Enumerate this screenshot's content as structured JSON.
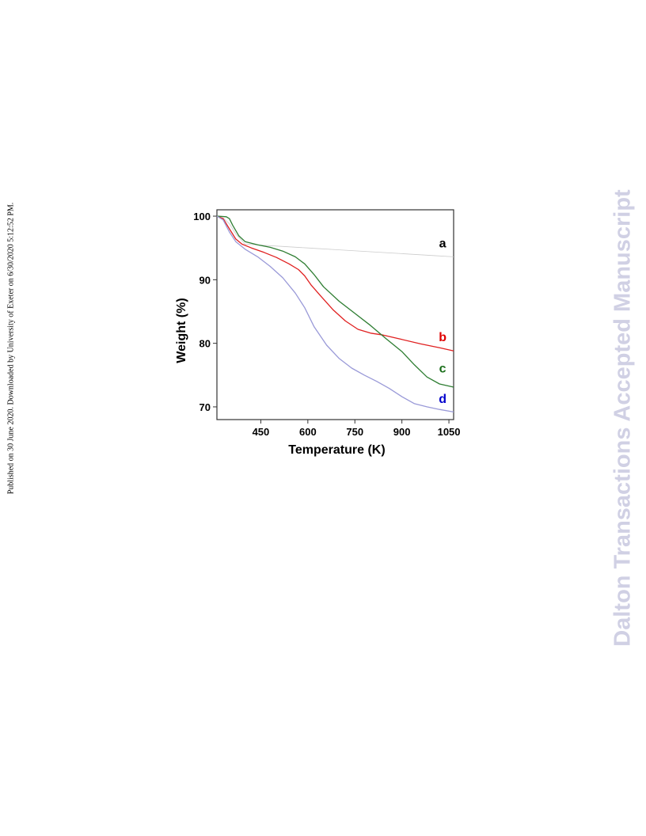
{
  "side_note": "Published on 30 June 2020. Downloaded by University of Exeter on 6/30/2020 5:12:52 PM.",
  "watermark": "Dalton Transactions Accepted Manuscript",
  "colors": {
    "background": "#ffffff",
    "watermark": "#d0d0e4",
    "series_a": "#cccccc",
    "series_b": "#e02020",
    "series_c": "#2e7d32",
    "series_d": "#9a9ad8",
    "label_a": "#000000",
    "label_b": "#e00000",
    "label_c": "#1a6e1a",
    "label_d": "#0000cc"
  },
  "chart_data": {
    "type": "line",
    "title": "",
    "xlabel": "Temperature (K)",
    "ylabel": "Weight (%)",
    "xlim": [
      310,
      1065
    ],
    "ylim": [
      68,
      101
    ],
    "xticks": [
      450,
      600,
      750,
      900,
      1050
    ],
    "yticks": [
      70,
      80,
      90,
      100
    ],
    "xtick_labels": [
      "450",
      "600",
      "750",
      "900",
      "1050"
    ],
    "ytick_labels": [
      "70",
      "80",
      "90",
      "100"
    ],
    "grid": false,
    "series": [
      {
        "name": "a",
        "color": "#cccccc",
        "x": [
          310,
          330,
          350,
          370,
          400,
          500,
          600,
          700,
          800,
          900,
          1000,
          1065
        ],
        "y": [
          100,
          99.7,
          98.8,
          97.2,
          95.6,
          95.3,
          95.0,
          94.7,
          94.4,
          94.1,
          93.8,
          93.6
        ]
      },
      {
        "name": "b",
        "color": "#e02020",
        "x": [
          310,
          330,
          350,
          370,
          390,
          420,
          460,
          500,
          540,
          570,
          590,
          610,
          640,
          680,
          720,
          760,
          800,
          840,
          900,
          960,
          1020,
          1065
        ],
        "y": [
          100,
          99.6,
          98.0,
          96.4,
          95.6,
          95.0,
          94.3,
          93.5,
          92.5,
          91.6,
          90.6,
          89.2,
          87.5,
          85.3,
          83.5,
          82.2,
          81.6,
          81.3,
          80.6,
          79.9,
          79.3,
          78.8
        ]
      },
      {
        "name": "c",
        "color": "#2e7d32",
        "x": [
          310,
          340,
          350,
          360,
          380,
          400,
          440,
          480,
          520,
          560,
          590,
          620,
          650,
          700,
          750,
          800,
          850,
          900,
          940,
          980,
          1020,
          1065
        ],
        "y": [
          100,
          99.9,
          99.6,
          98.6,
          96.9,
          96.0,
          95.5,
          95.1,
          94.5,
          93.6,
          92.5,
          90.8,
          88.9,
          86.6,
          84.7,
          82.8,
          80.7,
          78.7,
          76.6,
          74.7,
          73.6,
          73.1
        ]
      },
      {
        "name": "d",
        "color": "#9a9ad8",
        "x": [
          310,
          330,
          350,
          370,
          400,
          440,
          480,
          520,
          560,
          590,
          620,
          660,
          700,
          740,
          780,
          820,
          860,
          900,
          940,
          980,
          1020,
          1065
        ],
        "y": [
          100,
          99.4,
          97.5,
          96.0,
          94.8,
          93.6,
          92.1,
          90.3,
          87.9,
          85.6,
          82.6,
          79.7,
          77.6,
          76.1,
          75.0,
          74.0,
          72.9,
          71.6,
          70.5,
          70.0,
          69.6,
          69.2
        ]
      }
    ],
    "annotations": [
      {
        "text": "a",
        "series": "a",
        "x": 1030,
        "y": 95.1
      },
      {
        "text": "b",
        "series": "b",
        "x": 1030,
        "y": 80.3
      },
      {
        "text": "c",
        "series": "c",
        "x": 1030,
        "y": 75.4
      },
      {
        "text": "d",
        "series": "d",
        "x": 1030,
        "y": 70.6
      }
    ]
  }
}
